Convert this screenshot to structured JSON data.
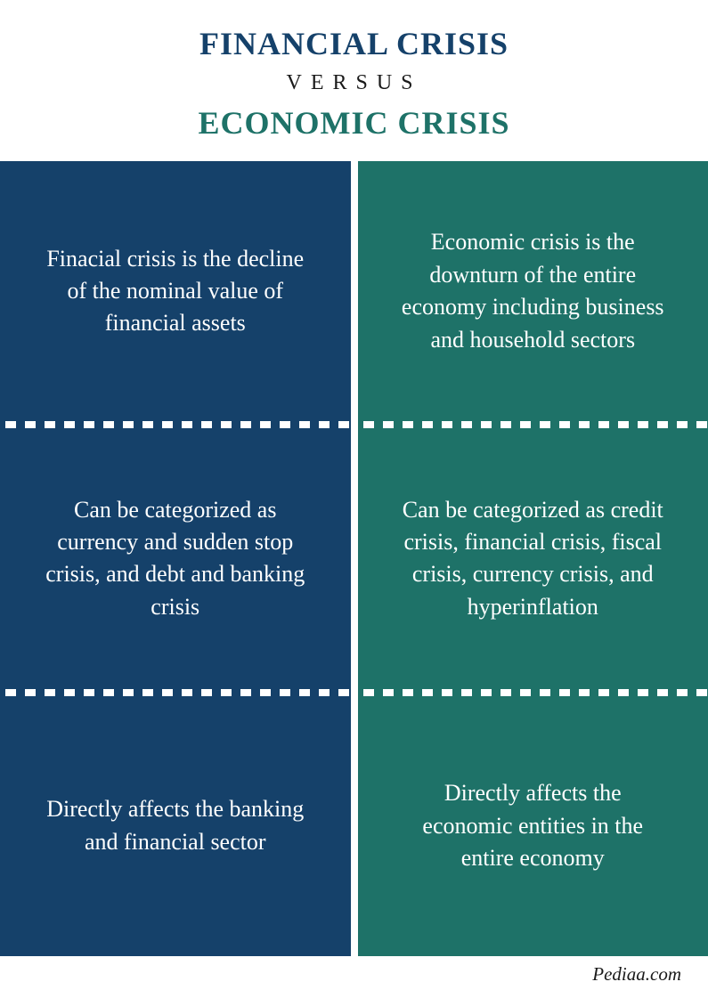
{
  "header": {
    "title_top": "FINANCIAL CRISIS",
    "title_mid": "VERSUS",
    "title_bottom": "ECONOMIC CRISIS",
    "color_top": "#15416a",
    "color_mid": "#1a1a1a",
    "color_bottom": "#1e7268"
  },
  "colors": {
    "left": "#15416a",
    "right": "#1e7268",
    "gap": "#ffffff"
  },
  "rows": [
    {
      "left": "Finacial crisis is the decline of the nominal value of financial assets",
      "right": "Economic crisis is the downturn of the entire economy including business and household sectors"
    },
    {
      "left": "Can be categorized as currency and sudden stop crisis, and debt and banking crisis",
      "right": "Can be categorized as credit crisis, financial crisis, fiscal crisis, currency crisis, and hyperinflation"
    },
    {
      "left": "Directly affects the banking and financial sector",
      "right": "Directly affects the economic entities in the entire economy"
    }
  ],
  "footer": {
    "text": "Pediaa.com"
  },
  "style": {
    "cell_fontsize": 26,
    "title_fontsize": 36,
    "versus_fontsize": 24
  }
}
